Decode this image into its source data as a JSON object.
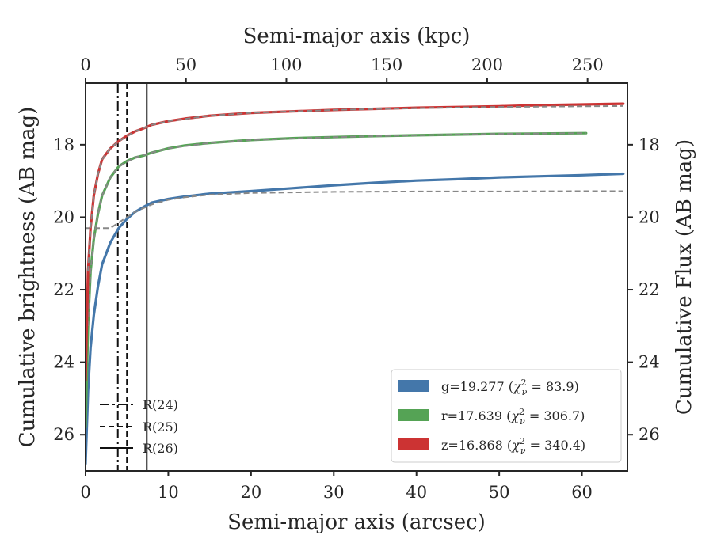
{
  "chart_data": {
    "type": "line",
    "xlabel": "Semi-major axis (arcsec)",
    "xlabel_top": "Semi-major axis (kpc)",
    "ylabel": "Cumulative brightness (AB mag)",
    "ylabel_right": "Cumulative Flux (AB mag)",
    "xlim": [
      0,
      65.5
    ],
    "ylim": [
      27,
      16.3
    ],
    "y_inverted": true,
    "x_ticks": [
      0,
      10,
      20,
      30,
      40,
      50,
      60
    ],
    "x_top_ticks": [
      0,
      50,
      100,
      150,
      200,
      250
    ],
    "x_top_per_arcsec": 4.12,
    "y_ticks": [
      18,
      20,
      22,
      24,
      26
    ],
    "grid": false,
    "legend_position": "lower-right",
    "series": [
      {
        "name": "g=19.277 (χ²ν = 83.9)",
        "label_main": "g=19.277 (",
        "label_chi": "χ",
        "label_sup": "2",
        "label_sub": "ν",
        "label_value": " = 83.9)",
        "color": "#4477aa",
        "x": [
          0,
          0.3,
          0.6,
          1,
          1.5,
          2,
          3,
          4,
          5,
          6,
          7,
          8,
          10,
          12,
          15,
          20,
          25,
          30,
          35,
          40,
          45,
          50,
          55,
          60,
          65
        ],
        "y": [
          26.8,
          24.8,
          23.6,
          22.7,
          21.9,
          21.3,
          20.7,
          20.3,
          20.05,
          19.85,
          19.72,
          19.6,
          19.5,
          19.43,
          19.35,
          19.28,
          19.2,
          19.12,
          19.05,
          18.99,
          18.95,
          18.9,
          18.87,
          18.84,
          18.8
        ],
        "fit_x": [
          0,
          3,
          4,
          5,
          6,
          8,
          10,
          12,
          15,
          20,
          30,
          40,
          50,
          60,
          65
        ],
        "fit_y": [
          20.3,
          20.3,
          20.15,
          20.0,
          19.85,
          19.65,
          19.52,
          19.45,
          19.38,
          19.33,
          19.3,
          19.29,
          19.29,
          19.28,
          19.28
        ]
      },
      {
        "name": "r=17.639 (χ²ν = 306.7)",
        "label_main": "r=17.639 (",
        "label_chi": "χ",
        "label_sup": "2",
        "label_sub": "ν",
        "label_value": " = 306.7)",
        "color": "#55a355",
        "x": [
          0,
          0.3,
          0.6,
          1,
          1.5,
          2,
          3,
          4,
          5,
          6,
          7,
          8,
          10,
          12,
          15,
          20,
          25,
          30,
          35,
          40,
          45,
          50,
          55,
          60.5
        ],
        "y": [
          25.8,
          23.0,
          21.5,
          20.6,
          19.9,
          19.4,
          18.9,
          18.6,
          18.45,
          18.35,
          18.3,
          18.22,
          18.1,
          18.02,
          17.95,
          17.87,
          17.82,
          17.79,
          17.76,
          17.74,
          17.72,
          17.7,
          17.69,
          17.68
        ],
        "fit_x": [
          0.3,
          0.6,
          1,
          1.5,
          2,
          3,
          4,
          6,
          8,
          10,
          15,
          20,
          30,
          40,
          50,
          60.5
        ],
        "fit_y": [
          23.0,
          21.5,
          20.6,
          19.9,
          19.4,
          18.9,
          18.6,
          18.35,
          18.22,
          18.1,
          17.95,
          17.87,
          17.79,
          17.74,
          17.7,
          17.68
        ]
      },
      {
        "name": "z=16.868 (χ²ν = 340.4)",
        "label_main": "z=16.868 (",
        "label_chi": "χ",
        "label_sup": "2",
        "label_sub": "ν",
        "label_value": " = 340.4)",
        "color": "#cc3333",
        "x": [
          0,
          0.3,
          0.6,
          1,
          1.5,
          2,
          3,
          4,
          5,
          6,
          7,
          8,
          10,
          12,
          15,
          20,
          25,
          30,
          35,
          40,
          45,
          50,
          55,
          60,
          65
        ],
        "y": [
          24.5,
          21.5,
          20.3,
          19.4,
          18.8,
          18.4,
          18.1,
          17.9,
          17.75,
          17.63,
          17.55,
          17.45,
          17.35,
          17.28,
          17.2,
          17.12,
          17.08,
          17.04,
          17.01,
          16.98,
          16.96,
          16.94,
          16.91,
          16.89,
          16.87
        ],
        "fit_x": [
          0.3,
          0.6,
          1,
          1.5,
          2,
          3,
          4,
          6,
          8,
          10,
          15,
          20,
          30,
          40,
          50,
          60,
          65
        ],
        "fit_y": [
          21.5,
          20.3,
          19.4,
          18.8,
          18.4,
          18.1,
          17.9,
          17.63,
          17.45,
          17.35,
          17.2,
          17.12,
          17.04,
          16.99,
          16.96,
          16.94,
          16.93
        ]
      }
    ],
    "fit_color": "#888888",
    "vertical_lines": [
      {
        "label": "R(24)",
        "x": 3.9,
        "style": "dashdot"
      },
      {
        "label": "R(25)",
        "x": 5.0,
        "style": "dashed"
      },
      {
        "label": "R(26)",
        "x": 7.4,
        "style": "solid"
      }
    ]
  }
}
